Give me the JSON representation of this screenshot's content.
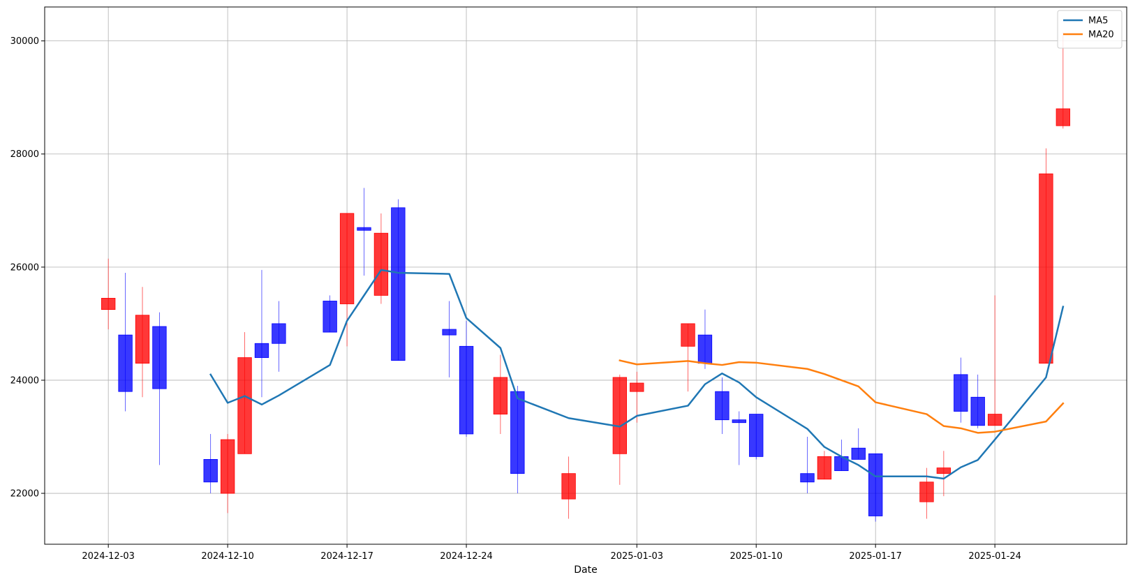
{
  "chart_data": {
    "type": "candlestick",
    "title": "",
    "xlabel": "Date",
    "ylabel": "",
    "ylim": [
      21100,
      30600
    ],
    "y_ticks": [
      22000,
      24000,
      26000,
      28000,
      30000
    ],
    "x_ticks": [
      "2024-12-03",
      "2024-12-10",
      "2024-12-17",
      "2024-12-24",
      "2025-01-03",
      "2025-01-10",
      "2025-01-17",
      "2025-01-24"
    ],
    "grid": true,
    "legend_position": "top-right",
    "colors": {
      "up": "#ff0000",
      "down": "#0000ff",
      "ma5": "#1f77b4",
      "ma20": "#ff7f0e",
      "grid": "#b0b0b0"
    },
    "candles": [
      {
        "date": "2024-12-03",
        "open": 25250,
        "high": 26150,
        "low": 24900,
        "close": 25450
      },
      {
        "date": "2024-12-04",
        "open": 24800,
        "high": 25900,
        "low": 23450,
        "close": 23800
      },
      {
        "date": "2024-12-05",
        "open": 24300,
        "high": 25650,
        "low": 23700,
        "close": 25150
      },
      {
        "date": "2024-12-06",
        "open": 24950,
        "high": 25200,
        "low": 22500,
        "close": 23850
      },
      {
        "date": "2024-12-09",
        "open": 22600,
        "high": 23050,
        "low": 22000,
        "close": 22200
      },
      {
        "date": "2024-12-10",
        "open": 22000,
        "high": 23050,
        "low": 21650,
        "close": 22950
      },
      {
        "date": "2024-12-11",
        "open": 22700,
        "high": 24850,
        "low": 22700,
        "close": 24400
      },
      {
        "date": "2024-12-12",
        "open": 24650,
        "high": 25950,
        "low": 23700,
        "close": 24400
      },
      {
        "date": "2024-12-13",
        "open": 25000,
        "high": 25400,
        "low": 24150,
        "close": 24650
      },
      {
        "date": "2024-12-16",
        "open": 25400,
        "high": 25500,
        "low": 24850,
        "close": 24850
      },
      {
        "date": "2024-12-17",
        "open": 25350,
        "high": 26950,
        "low": 24600,
        "close": 26950
      },
      {
        "date": "2024-12-18",
        "open": 26700,
        "high": 27400,
        "low": 25850,
        "close": 26650
      },
      {
        "date": "2024-12-19",
        "open": 25500,
        "high": 26950,
        "low": 25350,
        "close": 26600
      },
      {
        "date": "2024-12-20",
        "open": 27050,
        "high": 27200,
        "low": 24350,
        "close": 24350
      },
      {
        "date": "2024-12-23",
        "open": 24900,
        "high": 25400,
        "low": 24050,
        "close": 24800
      },
      {
        "date": "2024-12-24",
        "open": 24600,
        "high": 25050,
        "low": 23000,
        "close": 23050
      },
      {
        "date": "2024-12-26",
        "open": 23400,
        "high": 24450,
        "low": 23050,
        "close": 24050
      },
      {
        "date": "2024-12-27",
        "open": 23800,
        "high": 23900,
        "low": 22000,
        "close": 22350
      },
      {
        "date": "2024-12-30",
        "open": 21900,
        "high": 22650,
        "low": 21550,
        "close": 22350
      },
      {
        "date": "2025-01-02",
        "open": 22700,
        "high": 24100,
        "low": 22150,
        "close": 24050
      },
      {
        "date": "2025-01-03",
        "open": 23800,
        "high": 24150,
        "low": 23250,
        "close": 23950
      },
      {
        "date": "2025-01-06",
        "open": 24600,
        "high": 25000,
        "low": 23800,
        "close": 25000
      },
      {
        "date": "2025-01-07",
        "open": 24800,
        "high": 25250,
        "low": 24200,
        "close": 24300
      },
      {
        "date": "2025-01-08",
        "open": 23800,
        "high": 24050,
        "low": 23050,
        "close": 23300
      },
      {
        "date": "2025-01-09",
        "open": 23300,
        "high": 23450,
        "low": 22500,
        "close": 23250
      },
      {
        "date": "2025-01-10",
        "open": 23400,
        "high": 23400,
        "low": 22600,
        "close": 22650
      },
      {
        "date": "2025-01-13",
        "open": 22350,
        "high": 23000,
        "low": 22000,
        "close": 22200
      },
      {
        "date": "2025-01-14",
        "open": 22250,
        "high": 22750,
        "low": 22250,
        "close": 22650
      },
      {
        "date": "2025-01-15",
        "open": 22650,
        "high": 22950,
        "low": 22400,
        "close": 22400
      },
      {
        "date": "2025-01-16",
        "open": 22800,
        "high": 23150,
        "low": 22600,
        "close": 22600
      },
      {
        "date": "2025-01-17",
        "open": 22700,
        "high": 22700,
        "low": 21500,
        "close": 21600
      },
      {
        "date": "2025-01-20",
        "open": 21850,
        "high": 22450,
        "low": 21550,
        "close": 22200
      },
      {
        "date": "2025-01-21",
        "open": 22350,
        "high": 22750,
        "low": 21950,
        "close": 22450
      },
      {
        "date": "2025-01-22",
        "open": 24100,
        "high": 24400,
        "low": 23250,
        "close": 23450
      },
      {
        "date": "2025-01-23",
        "open": 23700,
        "high": 24100,
        "low": 23150,
        "close": 23200
      },
      {
        "date": "2025-01-24",
        "open": 23200,
        "high": 25500,
        "low": 23200,
        "close": 23400
      },
      {
        "date": "2025-01-27",
        "open": 24300,
        "high": 28100,
        "low": 24300,
        "close": 27650
      },
      {
        "date": "2025-01-28",
        "open": 28500,
        "high": 30150,
        "low": 28450,
        "close": 28800
      }
    ],
    "series": [
      {
        "name": "MA5",
        "values": [
          null,
          null,
          null,
          null,
          24100,
          23600,
          23720,
          23570,
          23730,
          24270,
          25050,
          25500,
          25950,
          25900,
          25880,
          25100,
          24570,
          23680,
          23330,
          23180,
          23370,
          23550,
          23930,
          24120,
          23960,
          23700,
          23140,
          22820,
          22650,
          22500,
          22300,
          22300,
          22260,
          22460,
          22590,
          22950,
          24050,
          25300
        ]
      },
      {
        "name": "MA20",
        "values": [
          null,
          null,
          null,
          null,
          null,
          null,
          null,
          null,
          null,
          null,
          null,
          null,
          null,
          null,
          null,
          null,
          null,
          null,
          null,
          24350,
          24280,
          24340,
          24300,
          24270,
          24320,
          24310,
          24200,
          24110,
          24000,
          23890,
          23610,
          23400,
          23190,
          23150,
          23070,
          23090,
          23270,
          23590
        ]
      }
    ]
  }
}
